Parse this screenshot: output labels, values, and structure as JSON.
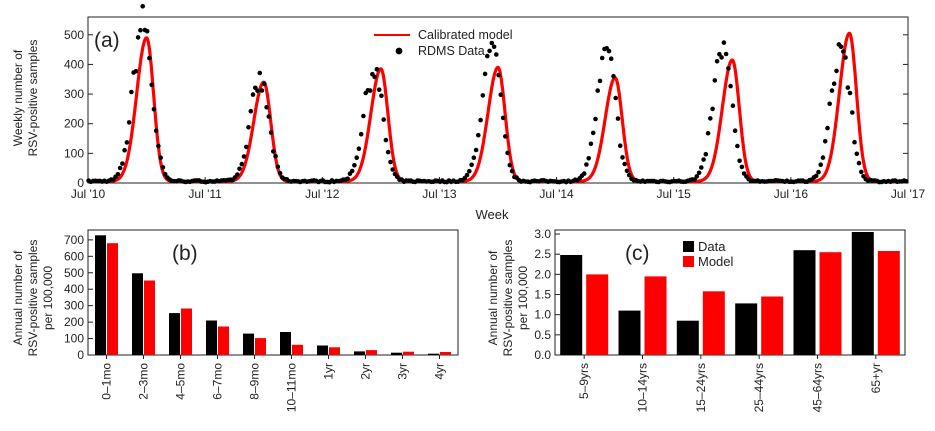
{
  "chart_data": [
    {
      "panel_label": "(a)",
      "type": "line",
      "xlabel": "Week",
      "ylabel_lines": [
        "Weekly number of",
        "RSV-positive samples"
      ],
      "ylim": [
        0,
        560
      ],
      "yticks": [
        0,
        100,
        200,
        300,
        400,
        500
      ],
      "x_tick_labels": [
        "Jul '10",
        "Jul '11",
        "Jul '12",
        "Jul '13",
        "Jul '14",
        "Jul '15",
        "Jul '16",
        "Jul '17"
      ],
      "xlim_years": [
        2010.5,
        2017.5
      ],
      "legend": {
        "placement": "top-center",
        "line_label": "Calibrated model",
        "points_label": "RDMS Data"
      },
      "colors": {
        "model": "#ff0000",
        "data": "#000000"
      },
      "model_peaks": [
        {
          "peak_year": 2011.0,
          "height": 490
        },
        {
          "peak_year": 2012.0,
          "height": 340
        },
        {
          "peak_year": 2013.0,
          "height": 385
        },
        {
          "peak_year": 2014.0,
          "height": 390
        },
        {
          "peak_year": 2015.0,
          "height": 355
        },
        {
          "peak_year": 2016.0,
          "height": 415
        },
        {
          "peak_year": 2017.0,
          "height": 505
        }
      ],
      "baseline": 5,
      "data_peaks": [
        {
          "peak_year": 2010.97,
          "height": 540
        },
        {
          "peak_year": 2011.97,
          "height": 335
        },
        {
          "peak_year": 2012.94,
          "height": 375
        },
        {
          "peak_year": 2013.95,
          "height": 435
        },
        {
          "peak_year": 2014.93,
          "height": 430
        },
        {
          "peak_year": 2015.92,
          "height": 445
        },
        {
          "peak_year": 2016.93,
          "height": 455
        }
      ]
    },
    {
      "panel_label": "(b)",
      "type": "bar",
      "ylabel_lines": [
        "Annual number of",
        "RSV-positive samples",
        "per 100,000"
      ],
      "ylim": [
        0,
        760
      ],
      "yticks": [
        0,
        100,
        200,
        300,
        400,
        500,
        600,
        700
      ],
      "categories": [
        "0–1mo",
        "2–3mo",
        "4–5mo",
        "6–7mo",
        "8–9mo",
        "10–11mo",
        "1yr",
        "2yr",
        "3yr",
        "4yr"
      ],
      "series": [
        {
          "name": "Data",
          "color": "#000000",
          "values": [
            728,
            497,
            255,
            210,
            130,
            140,
            58,
            22,
            14,
            8
          ]
        },
        {
          "name": "Model",
          "color": "#ff0000",
          "values": [
            680,
            453,
            283,
            173,
            103,
            62,
            47,
            30,
            20,
            18
          ]
        }
      ]
    },
    {
      "panel_label": "(c)",
      "type": "bar",
      "ylabel_lines": [
        "Annual number of",
        "RSV-positive samples",
        "per 100,000"
      ],
      "ylim": [
        0,
        3.1
      ],
      "yticks": [
        "0.0",
        "0.5",
        "1.0",
        "1.5",
        "2.0",
        "2.5",
        "3.0"
      ],
      "categories": [
        "5–9yrs",
        "10–14yrs",
        "15–24yrs",
        "25–44yrs",
        "45–64yrs",
        "65+yr"
      ],
      "legend": {
        "placement": "top-center"
      },
      "series": [
        {
          "name": "Data",
          "color": "#000000",
          "values": [
            2.48,
            1.1,
            0.85,
            1.28,
            2.6,
            3.05
          ]
        },
        {
          "name": "Model",
          "color": "#ff0000",
          "values": [
            2.0,
            1.95,
            1.58,
            1.45,
            2.55,
            2.58
          ]
        }
      ]
    }
  ]
}
